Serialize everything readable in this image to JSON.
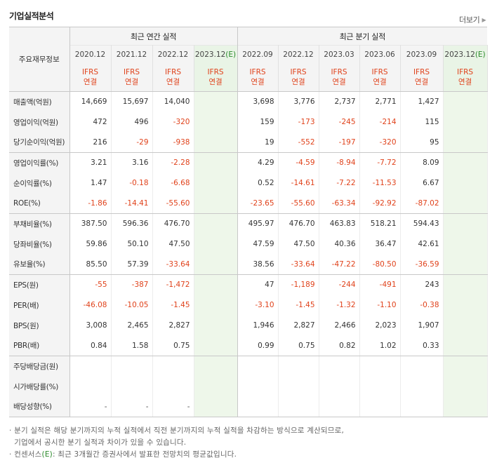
{
  "title": "기업실적분석",
  "more_label": "더보기",
  "more_icon": "chevron-right-icon",
  "header": {
    "label_head": "주요재무정보",
    "group_annual": "최근 연간 실적",
    "group_quarter": "최근 분기 실적",
    "periods": [
      "2020.12",
      "2021.12",
      "2022.12",
      "2023.12",
      "2022.09",
      "2022.12",
      "2023.03",
      "2023.06",
      "2023.09",
      "2023.12"
    ],
    "estimate_mark": "(E)",
    "standard_line1": "IFRS",
    "standard_line2": "연결"
  },
  "rows": [
    {
      "label": "매출액(억원)",
      "values": [
        "14,669",
        "15,697",
        "14,040",
        "",
        "3,698",
        "3,776",
        "2,737",
        "2,771",
        "1,427",
        ""
      ]
    },
    {
      "label": "영업이익(억원)",
      "values": [
        "472",
        "496",
        "-320",
        "",
        "159",
        "-173",
        "-245",
        "-214",
        "115",
        ""
      ]
    },
    {
      "label": "당기순이익(억원)",
      "values": [
        "216",
        "-29",
        "-938",
        "",
        "19",
        "-552",
        "-197",
        "-320",
        "95",
        ""
      ]
    },
    {
      "label": "영업이익률(%)",
      "values": [
        "3.21",
        "3.16",
        "-2.28",
        "",
        "4.29",
        "-4.59",
        "-8.94",
        "-7.72",
        "8.09",
        ""
      ]
    },
    {
      "label": "순이익률(%)",
      "values": [
        "1.47",
        "-0.18",
        "-6.68",
        "",
        "0.52",
        "-14.61",
        "-7.22",
        "-11.53",
        "6.67",
        ""
      ]
    },
    {
      "label": "ROE(%)",
      "values": [
        "-1.86",
        "-14.41",
        "-55.60",
        "",
        "-23.65",
        "-55.60",
        "-63.34",
        "-92.92",
        "-87.02",
        ""
      ]
    },
    {
      "label": "부채비율(%)",
      "values": [
        "387.50",
        "596.36",
        "476.70",
        "",
        "495.97",
        "476.70",
        "463.83",
        "518.21",
        "594.43",
        ""
      ]
    },
    {
      "label": "당좌비율(%)",
      "values": [
        "59.86",
        "50.10",
        "47.50",
        "",
        "47.59",
        "47.50",
        "40.36",
        "36.47",
        "42.61",
        ""
      ]
    },
    {
      "label": "유보율(%)",
      "values": [
        "85.50",
        "57.39",
        "-33.64",
        "",
        "38.56",
        "-33.64",
        "-47.22",
        "-80.50",
        "-36.59",
        ""
      ]
    },
    {
      "label": "EPS(원)",
      "values": [
        "-55",
        "-387",
        "-1,472",
        "",
        "47",
        "-1,189",
        "-244",
        "-491",
        "243",
        ""
      ]
    },
    {
      "label": "PER(배)",
      "values": [
        "-46.08",
        "-10.05",
        "-1.45",
        "",
        "-3.10",
        "-1.45",
        "-1.32",
        "-1.10",
        "-0.38",
        ""
      ]
    },
    {
      "label": "BPS(원)",
      "values": [
        "3,008",
        "2,465",
        "2,827",
        "",
        "1,946",
        "2,827",
        "2,466",
        "2,023",
        "1,907",
        ""
      ]
    },
    {
      "label": "PBR(배)",
      "values": [
        "0.84",
        "1.58",
        "0.75",
        "",
        "0.99",
        "0.75",
        "0.82",
        "1.02",
        "0.33",
        ""
      ]
    },
    {
      "label": "주당배당금(원)",
      "values": [
        "",
        "",
        "",
        "",
        "",
        "",
        "",
        "",
        "",
        ""
      ]
    },
    {
      "label": "시가배당률(%)",
      "values": [
        "",
        "",
        "",
        "",
        "",
        "",
        "",
        "",
        "",
        ""
      ]
    },
    {
      "label": "배당성향(%)",
      "values": [
        "-",
        "-",
        "-",
        "",
        "",
        "",
        "",
        "",
        "",
        ""
      ]
    }
  ],
  "notes": {
    "line1": "분기 실적은 해당 분기까지의 누적 실적에서 직전 분기까지의 누적 실적을 차감하는 방식으로 계산되므로,",
    "line2": "기업에서 공시한 분기 실적과 차이가 있을 수 있습니다.",
    "line3_prefix": "컨센서스",
    "line3_mark": "(E)",
    "line3_suffix": ": 최근 3개월간 증권사에서 발표한 전망치의 평균값입니다."
  },
  "colors": {
    "negative": "#e0421b",
    "estimate_bg": "#eef7ea",
    "estimate_text": "#2a8a2a",
    "header_bg": "#f4f4f4"
  }
}
